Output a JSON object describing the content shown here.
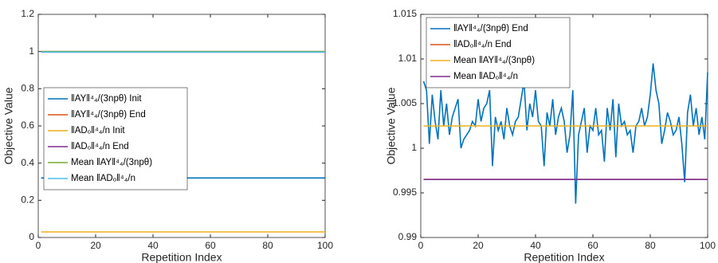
{
  "chart_data": [
    {
      "type": "line",
      "xlabel": "Repetition Index",
      "ylabel": "Objective Value",
      "xlim": [
        0,
        100
      ],
      "ylim": [
        0,
        1.2
      ],
      "xticks": [
        0,
        20,
        40,
        60,
        80,
        100
      ],
      "yticks": [
        0,
        0.2,
        0.4,
        0.6,
        0.8,
        1,
        1.2
      ],
      "legend": "west",
      "series": [
        {
          "name": "‖AY‖⁴₄/(3npθ) Init",
          "color": "#0072BD",
          "x": [
            1,
            100
          ],
          "values": [
            0.32,
            0.32
          ]
        },
        {
          "name": "‖AY‖⁴₄/(3npθ) End",
          "color": "#D95319",
          "x": [
            1,
            100
          ],
          "values": [
            1.0,
            1.0
          ]
        },
        {
          "name": "‖ADₒ‖⁴₄/n Init",
          "color": "#EDB120",
          "x": [
            1,
            100
          ],
          "values": [
            0.03,
            0.03
          ]
        },
        {
          "name": "‖ADₒ‖⁴₄/n End",
          "color": "#7E2F8E",
          "x": [
            1,
            100
          ],
          "values": [
            0.997,
            0.997
          ]
        },
        {
          "name": "Mean ‖AY‖⁴₄/(3npθ)",
          "color": "#77AC30",
          "x": [
            1,
            100
          ],
          "values": [
            1.0,
            1.0
          ]
        },
        {
          "name": "Mean ‖ADₒ‖⁴₄/n",
          "color": "#4DBEEE",
          "x": [
            1,
            100
          ],
          "values": [
            0.997,
            0.997
          ]
        }
      ]
    },
    {
      "type": "line",
      "xlabel": "Repetition Index",
      "ylabel": "Objective Value",
      "xlim": [
        0,
        100
      ],
      "ylim": [
        0.99,
        1.015
      ],
      "xticks": [
        0,
        20,
        40,
        60,
        80,
        100
      ],
      "yticks": [
        0.99,
        0.995,
        1,
        1.005,
        1.01,
        1.015
      ],
      "legend": "northwest",
      "series": [
        {
          "name": "‖AY‖⁴₄/(3npθ) End",
          "color": "#0072BD",
          "x": [
            1,
            2,
            3,
            4,
            5,
            6,
            7,
            8,
            9,
            10,
            11,
            12,
            13,
            14,
            15,
            16,
            17,
            18,
            19,
            20,
            21,
            22,
            23,
            24,
            25,
            26,
            27,
            28,
            29,
            30,
            31,
            32,
            33,
            34,
            35,
            36,
            37,
            38,
            39,
            40,
            41,
            42,
            43,
            44,
            45,
            46,
            47,
            48,
            49,
            50,
            51,
            52,
            53,
            54,
            55,
            56,
            57,
            58,
            59,
            60,
            61,
            62,
            63,
            64,
            65,
            66,
            67,
            68,
            69,
            70,
            71,
            72,
            73,
            74,
            75,
            76,
            77,
            78,
            79,
            80,
            81,
            82,
            83,
            84,
            85,
            86,
            87,
            88,
            89,
            90,
            91,
            92,
            93,
            94,
            95,
            96,
            97,
            98,
            99,
            100
          ],
          "values": [
            1.0075,
            1.0065,
            1.0005,
            1.006,
            1.003,
            1.001,
            1.0065,
            1.0025,
            1.005,
            1.0015,
            1.0035,
            1.0045,
            1.0055,
            1.0,
            1.001,
            1.0015,
            1.002,
            1.003,
            1.0025,
            1.0055,
            1.003,
            1.0045,
            1.005,
            1.0065,
            0.998,
            1.0035,
            1.002,
            1.003,
            1.001,
            1.0045,
            1.0025,
            1.0015,
            1.003,
            1.0035,
            1.0055,
            1.0075,
            1.002,
            1.005,
            1.0035,
            1.0065,
            1.003,
            1.0025,
            0.998,
            1.004,
            1.0025,
            1.0055,
            1.0015,
            1.0035,
            1.0045,
            1.003,
            0.9995,
            1.0015,
            1.0065,
            0.9938,
            1.0015,
            1.003,
            1.0045,
            0.9995,
            1.0025,
            1.002,
            1.0045,
            1.0015,
            1.002,
            0.9985,
            1.0045,
            1.002,
            1.0055,
            0.999,
            1.005,
            1.0025,
            1.003,
            1.0015,
            1.002,
            0.9995,
            1.0025,
            1.003,
            1.0045,
            1.0025,
            1.0035,
            1.006,
            1.0095,
            1.0065,
            1.005,
            1.0005,
            1.002,
            1.004,
            1.003,
            1.0015,
            1.002,
            1.0035,
            1.0005,
            0.9962,
            1.004,
            1.006,
            1.0025,
            1.0045,
            1.0015,
            1.0035,
            1.001,
            1.0085
          ]
        },
        {
          "name": "‖ADₒ‖⁴₄/n End",
          "color": "#D95319",
          "x": [
            1,
            100
          ],
          "values": [
            0.9965,
            0.9965
          ]
        },
        {
          "name": "Mean ‖AY‖⁴₄/(3npθ)",
          "color": "#EDB120",
          "x": [
            1,
            100
          ],
          "values": [
            1.0025,
            1.0025
          ]
        },
        {
          "name": "Mean ‖ADₒ‖⁴₄/n",
          "color": "#7E2F8E",
          "x": [
            1,
            100
          ],
          "values": [
            0.9965,
            0.9965
          ]
        }
      ]
    }
  ]
}
